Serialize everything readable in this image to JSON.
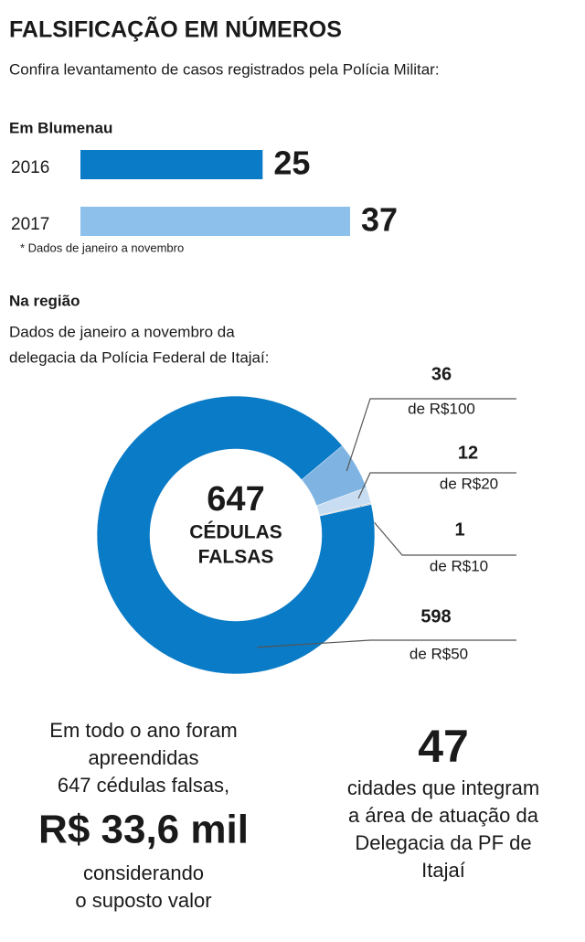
{
  "title": "FALSIFICAÇÃO EM NÚMEROS",
  "subtitle": "Confira levantamento de casos registrados pela Polícia Militar:",
  "chart_data": [
    {
      "type": "bar",
      "title": "Em Blumenau",
      "categories": [
        "2016",
        "2017"
      ],
      "values": [
        25,
        37
      ],
      "colors": [
        "#0a7bc6",
        "#8dc0ea"
      ],
      "note": "* Dados de janeiro a novembro"
    },
    {
      "type": "donut",
      "title": "Na região",
      "subtitle": [
        "Dados de janeiro a novembro da",
        "delegacia da Polícia Federal de Itajaí:"
      ],
      "categories": [
        "de R$100",
        "de R$20",
        "de R$10",
        "de R$50"
      ],
      "values": [
        36,
        12,
        1,
        598
      ],
      "colors": [
        "#7fb4e2",
        "#c8dcf2",
        "#c8c8c8",
        "#0a7bc6"
      ],
      "center_value": 647,
      "center_label": [
        "CÉDULAS",
        "FALSAS"
      ]
    }
  ],
  "footer": {
    "left": {
      "lines_top": [
        "Em todo o ano foram",
        "apreendidas",
        "647 cédulas falsas,"
      ],
      "highlight": "R$ 33,6 mil",
      "lines_bottom": [
        "considerando",
        "o suposto valor"
      ]
    },
    "right": {
      "number": 47,
      "lines": [
        "cidades que integram",
        "a área de atuação da",
        "Delegacia da PF de",
        "Itajaí"
      ]
    }
  }
}
